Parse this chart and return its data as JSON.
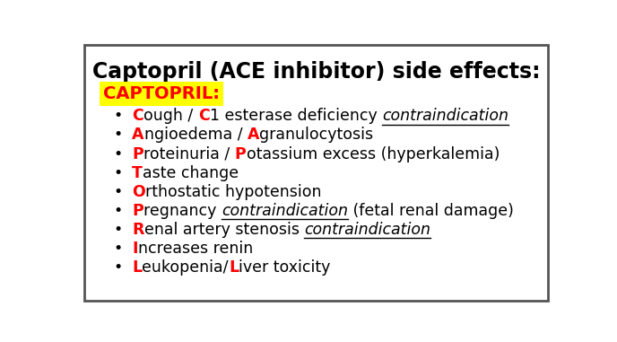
{
  "title": "Captopril (ACE inhibitor) side effects:",
  "title_fontsize": 17,
  "title_color": "#000000",
  "mnemonic_label": "CAPTOPRIL:",
  "mnemonic_bg": "#FFFF00",
  "mnemonic_color": "#FF0000",
  "mnemonic_fontsize": 14,
  "bullet_fontsize": 12.5,
  "background_color": "#FFFFFF",
  "border_color": "#555555",
  "red_color": "#FF0000",
  "black_color": "#000000",
  "bullets": [
    {
      "letter": "C",
      "parts": [
        {
          "t": "ough / ",
          "red": false,
          "bold": false,
          "italic": false,
          "ul": false
        },
        {
          "t": "C",
          "red": true,
          "bold": true,
          "italic": false,
          "ul": false
        },
        {
          "t": "1 esterase deficiency ",
          "red": false,
          "bold": false,
          "italic": false,
          "ul": false
        },
        {
          "t": "contraindication",
          "red": false,
          "bold": false,
          "italic": true,
          "ul": true
        }
      ]
    },
    {
      "letter": "A",
      "parts": [
        {
          "t": "ngioedema / ",
          "red": false,
          "bold": false,
          "italic": false,
          "ul": false
        },
        {
          "t": "A",
          "red": true,
          "bold": true,
          "italic": false,
          "ul": false
        },
        {
          "t": "granulocytosis",
          "red": false,
          "bold": false,
          "italic": false,
          "ul": false
        }
      ]
    },
    {
      "letter": "P",
      "parts": [
        {
          "t": "roteinuria / ",
          "red": false,
          "bold": false,
          "italic": false,
          "ul": false
        },
        {
          "t": "P",
          "red": true,
          "bold": true,
          "italic": false,
          "ul": false
        },
        {
          "t": "otassium excess (hyperkalemia)",
          "red": false,
          "bold": false,
          "italic": false,
          "ul": false
        }
      ]
    },
    {
      "letter": "T",
      "parts": [
        {
          "t": "aste change",
          "red": false,
          "bold": false,
          "italic": false,
          "ul": false
        }
      ]
    },
    {
      "letter": "O",
      "parts": [
        {
          "t": "rthostatic hypotension",
          "red": false,
          "bold": false,
          "italic": false,
          "ul": false
        }
      ]
    },
    {
      "letter": "P",
      "parts": [
        {
          "t": "regnancy ",
          "red": false,
          "bold": false,
          "italic": false,
          "ul": false
        },
        {
          "t": "contraindication",
          "red": false,
          "bold": false,
          "italic": true,
          "ul": true
        },
        {
          "t": " (fetal renal damage)",
          "red": false,
          "bold": false,
          "italic": false,
          "ul": false
        }
      ]
    },
    {
      "letter": "R",
      "parts": [
        {
          "t": "enal artery stenosis ",
          "red": false,
          "bold": false,
          "italic": false,
          "ul": false
        },
        {
          "t": "contraindication",
          "red": false,
          "bold": false,
          "italic": true,
          "ul": true
        }
      ]
    },
    {
      "letter": "I",
      "parts": [
        {
          "t": "ncreases renin",
          "red": false,
          "bold": false,
          "italic": false,
          "ul": false
        }
      ]
    },
    {
      "letter": "L",
      "parts": [
        {
          "t": "eukopenia/",
          "red": false,
          "bold": false,
          "italic": false,
          "ul": false
        },
        {
          "t": "L",
          "red": true,
          "bold": true,
          "italic": false,
          "ul": false
        },
        {
          "t": "iver toxicity",
          "red": false,
          "bold": false,
          "italic": false,
          "ul": false
        }
      ]
    }
  ]
}
